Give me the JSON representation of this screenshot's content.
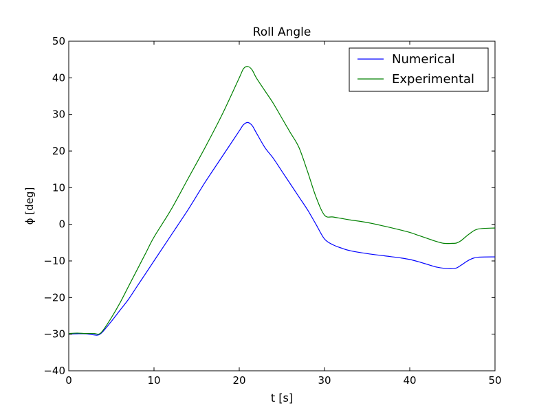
{
  "chart_data": {
    "type": "line",
    "title": "Roll Angle",
    "xlabel": "t [s]",
    "ylabel": "ϕ [deg]",
    "xlim": [
      0,
      50
    ],
    "ylim": [
      -40,
      50
    ],
    "xticks": [
      0,
      10,
      20,
      30,
      40,
      50
    ],
    "yticks": [
      -40,
      -30,
      -20,
      -10,
      0,
      10,
      20,
      30,
      40,
      50
    ],
    "xtick_labels": [
      "0",
      "10",
      "20",
      "30",
      "40",
      "50"
    ],
    "ytick_labels": [
      "−40",
      "−30",
      "−20",
      "−10",
      "0",
      "10",
      "20",
      "30",
      "40",
      "50"
    ],
    "grid": false,
    "legend_position": "top-right",
    "series": [
      {
        "name": "Numerical",
        "color": "#0000ff",
        "x": [
          0,
          1,
          2,
          3,
          3.5,
          4,
          5,
          6,
          7,
          8,
          9,
          10,
          12,
          14,
          16,
          18,
          20,
          20.5,
          21,
          21.5,
          22,
          23,
          24,
          25,
          26,
          27,
          28,
          29,
          30,
          31,
          32,
          33,
          35,
          37,
          39,
          40,
          41,
          42,
          43,
          44,
          45,
          45.5,
          46,
          47,
          48,
          50
        ],
        "y": [
          -30,
          -29.9,
          -29.9,
          -30.2,
          -30.2,
          -29.3,
          -26.5,
          -23.5,
          -20.5,
          -17,
          -13.5,
          -10,
          -3,
          4,
          11.5,
          18.5,
          25.5,
          27.2,
          27.8,
          27,
          25,
          21,
          18,
          14.5,
          11,
          7.5,
          4,
          0,
          -4,
          -5.6,
          -6.5,
          -7.2,
          -8,
          -8.6,
          -9.2,
          -9.6,
          -10.2,
          -10.9,
          -11.6,
          -12,
          -12.1,
          -11.9,
          -11.2,
          -9.7,
          -9,
          -8.9
        ]
      },
      {
        "name": "Experimental",
        "color": "#008000",
        "x": [
          0,
          1,
          2,
          3,
          3.5,
          4,
          5,
          6,
          7,
          8,
          9,
          10,
          12,
          14,
          16,
          18,
          20,
          20.5,
          21,
          21.5,
          22,
          23,
          24,
          25,
          26,
          27,
          28,
          29,
          30,
          31,
          32,
          33,
          35,
          37,
          39,
          40,
          41,
          42,
          43,
          44,
          45,
          45.5,
          46,
          47,
          48,
          50
        ],
        "y": [
          -29.8,
          -29.7,
          -29.8,
          -29.8,
          -30,
          -29,
          -25.5,
          -21.5,
          -17,
          -12.5,
          -8,
          -3.5,
          4,
          12.5,
          21,
          30,
          40,
          42.5,
          43.1,
          42.2,
          40,
          36.5,
          33,
          29,
          25,
          21,
          14.5,
          7.5,
          2.5,
          2,
          1.6,
          1.2,
          0.5,
          -0.5,
          -1.6,
          -2.2,
          -3,
          -3.8,
          -4.6,
          -5.2,
          -5.2,
          -5.1,
          -4.5,
          -2.6,
          -1.3,
          -1
        ]
      }
    ]
  }
}
